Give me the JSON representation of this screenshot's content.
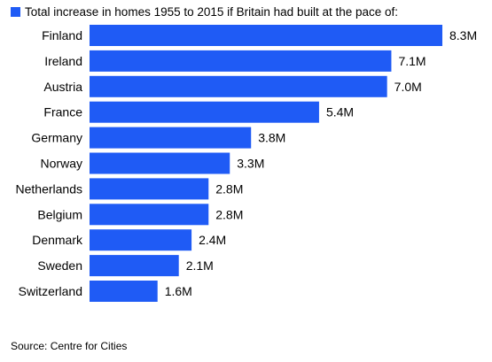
{
  "chart_data": {
    "type": "bar",
    "orientation": "horizontal",
    "title": "Total increase in homes 1955 to 2015 if Britain had built at the pace of:",
    "categories": [
      "Finland",
      "Ireland",
      "Austria",
      "France",
      "Germany",
      "Norway",
      "Netherlands",
      "Belgium",
      "Denmark",
      "Sweden",
      "Switzerland"
    ],
    "values": [
      8.3,
      7.1,
      7.0,
      5.4,
      3.8,
      3.3,
      2.8,
      2.8,
      2.4,
      2.1,
      1.6
    ],
    "data_labels": [
      "8.3M",
      "7.1M",
      "7.0M",
      "5.4M",
      "3.8M",
      "3.3M",
      "2.8M",
      "2.8M",
      "2.4M",
      "2.1M",
      "1.6M"
    ],
    "unit": "M",
    "xlim": [
      0,
      8.3
    ],
    "grid": false,
    "legend_position": "top-left",
    "bar_color": "#1f5bf5",
    "source": "Source: Centre for Cities"
  }
}
